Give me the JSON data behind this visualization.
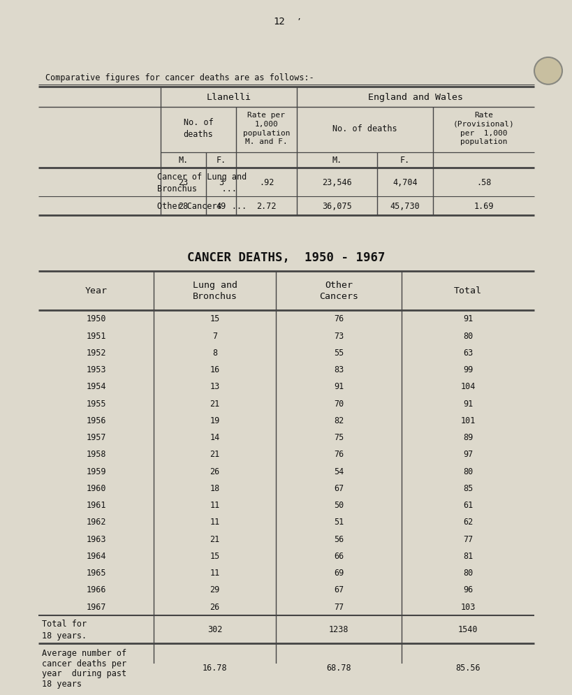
{
  "page_number": "12",
  "intro_text": "Comparative figures for cancer deaths are as follows:-",
  "llanelli_header": "Llanelli",
  "england_header": "England and Wales",
  "no_deaths_header": "No. of\ndeaths",
  "rate_per_header": "Rate per\n1,000\npopulation\nM. and F.",
  "no_deaths_ew_header": "No. of deaths",
  "rate_prov_header": "Rate\n(Provisional)\nper  1,000\npopulation",
  "mf_m": "M.",
  "mf_f": "F.",
  "row1_label1": "Cancer of Lung and",
  "row1_label2": "Bronchus     ...",
  "row1_llan_m": "23",
  "row1_llan_f": "3",
  "row1_llan_rate": ".92",
  "row1_ew_m": "23,546",
  "row1_ew_f": "4,704",
  "row1_ew_rate": ".58",
  "row2_label": "Other Cancers  ...",
  "row2_llan_m": "28",
  "row2_llan_f": "49",
  "row2_llan_rate": "2.72",
  "row2_ew_m": "36,075",
  "row2_ew_f": "45,730",
  "row2_ew_rate": "1.69",
  "table2_title": "CANCER DEATHS,  1950 - 1967",
  "table2_col_headers": [
    "Year",
    "Lung and\nBronchus",
    "Other\nCancers",
    "Total"
  ],
  "table2_rows": [
    [
      "1950",
      "15",
      "76",
      "91"
    ],
    [
      "1951",
      "7",
      "73",
      "80"
    ],
    [
      "1952",
      "8",
      "55",
      "63"
    ],
    [
      "1953",
      "16",
      "83",
      "99"
    ],
    [
      "1954",
      "13",
      "91",
      "104"
    ],
    [
      "1955",
      "21",
      "70",
      "91"
    ],
    [
      "1956",
      "19",
      "82",
      "101"
    ],
    [
      "1957",
      "14",
      "75",
      "89"
    ],
    [
      "1958",
      "21",
      "76",
      "97"
    ],
    [
      "1959",
      "26",
      "54",
      "80"
    ],
    [
      "1960",
      "18",
      "67",
      "85"
    ],
    [
      "1961",
      "11",
      "50",
      "61"
    ],
    [
      "1962",
      "11",
      "51",
      "62"
    ],
    [
      "1963",
      "21",
      "56",
      "77"
    ],
    [
      "1964",
      "15",
      "66",
      "81"
    ],
    [
      "1965",
      "11",
      "69",
      "80"
    ],
    [
      "1966",
      "29",
      "67",
      "96"
    ],
    [
      "1967",
      "26",
      "77",
      "103"
    ]
  ],
  "total_label1": "Total for",
  "total_label2": "18 years.",
  "total_vals": [
    "302",
    "1238",
    "1540"
  ],
  "avg_label1": "Average number of",
  "avg_label2": "cancer deaths per",
  "avg_label3": "year  during past",
  "avg_label4": "18 years",
  "avg_vals": [
    "16.78",
    "68.78",
    "85.56"
  ],
  "bg_color": "#ddd9cc",
  "text_color": "#111111",
  "line_color": "#444444"
}
